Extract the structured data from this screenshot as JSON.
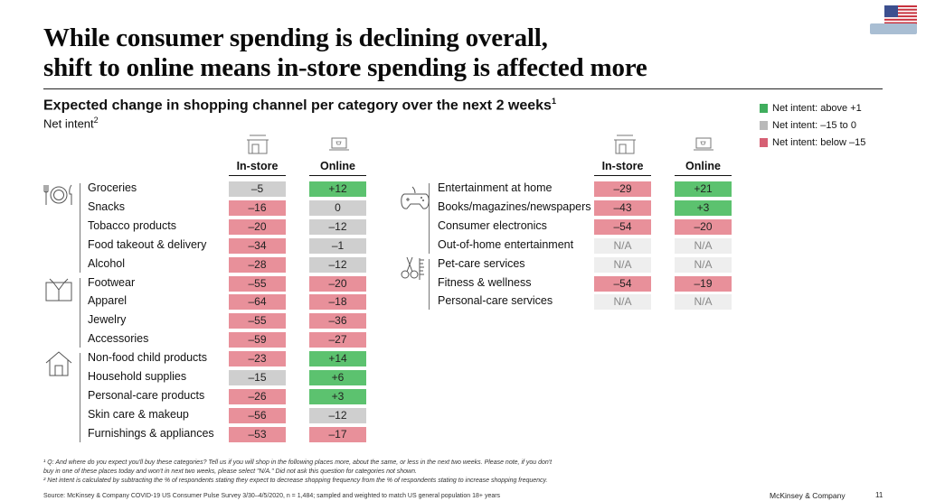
{
  "title": {
    "line1": "While consumer spending is declining overall,",
    "line2": "shift to online means in-store spending is affected more"
  },
  "subtitle": "Expected change in shopping channel per category over the next 2 weeks",
  "subtitle_sup": "1",
  "net_intent_label": "Net intent",
  "net_intent_sup": "2",
  "legend": [
    {
      "label": "Net intent: above +1",
      "color": "#3fad5d"
    },
    {
      "label": "Net intent: –15 to 0",
      "color": "#b9b9b9"
    },
    {
      "label": "Net intent: below –15",
      "color": "#d66074"
    }
  ],
  "colors": {
    "green": "#5cc26f",
    "gray": "#cfcfcf",
    "red": "#e8909a",
    "na": "#eeeeee"
  },
  "column_headers": {
    "instore": "In-store",
    "online": "Online"
  },
  "chart_data": {
    "type": "table",
    "title": "Expected change in shopping channel per category over the next 2 weeks",
    "columns": [
      "In-store",
      "Online"
    ],
    "groups": [
      {
        "icon": "dining-icon",
        "rows": [
          {
            "category": "Groceries",
            "instore": "–5",
            "online": "+12",
            "instore_class": "gray",
            "online_class": "green"
          },
          {
            "category": "Snacks",
            "instore": "–16",
            "online": "0",
            "instore_class": "red",
            "online_class": "gray"
          },
          {
            "category": "Tobacco products",
            "instore": "–20",
            "online": "–12",
            "instore_class": "red",
            "online_class": "gray"
          },
          {
            "category": "Food takeout & delivery",
            "instore": "–34",
            "online": "–1",
            "instore_class": "red",
            "online_class": "gray"
          },
          {
            "category": "Alcohol",
            "instore": "–28",
            "online": "–12",
            "instore_class": "red",
            "online_class": "gray"
          }
        ]
      },
      {
        "icon": "clothing-icon",
        "rows": [
          {
            "category": "Footwear",
            "instore": "–55",
            "online": "–20",
            "instore_class": "red",
            "online_class": "red"
          },
          {
            "category": "Apparel",
            "instore": "–64",
            "online": "–18",
            "instore_class": "red",
            "online_class": "red"
          },
          {
            "category": "Jewelry",
            "instore": "–55",
            "online": "–36",
            "instore_class": "red",
            "online_class": "red"
          },
          {
            "category": "Accessories",
            "instore": "–59",
            "online": "–27",
            "instore_class": "red",
            "online_class": "red"
          }
        ]
      },
      {
        "icon": "house-icon",
        "rows": [
          {
            "category": "Non-food child products",
            "instore": "–23",
            "online": "+14",
            "instore_class": "red",
            "online_class": "green"
          },
          {
            "category": "Household supplies",
            "instore": "–15",
            "online": "+6",
            "instore_class": "gray",
            "online_class": "green"
          },
          {
            "category": "Personal-care products",
            "instore": "–26",
            "online": "+3",
            "instore_class": "red",
            "online_class": "green"
          },
          {
            "category": "Skin care & makeup",
            "instore": "–56",
            "online": "–12",
            "instore_class": "red",
            "online_class": "gray"
          },
          {
            "category": "Furnishings & appliances",
            "instore": "–53",
            "online": "–17",
            "instore_class": "red",
            "online_class": "red"
          }
        ]
      },
      {
        "icon": "gamepad-icon",
        "rows": [
          {
            "category": "Entertainment at home",
            "instore": "–29",
            "online": "+21",
            "instore_class": "red",
            "online_class": "green"
          },
          {
            "category": "Books/magazines/newspapers",
            "instore": "–43",
            "online": "+3",
            "instore_class": "red",
            "online_class": "green"
          },
          {
            "category": "Consumer electronics",
            "instore": "–54",
            "online": "–20",
            "instore_class": "red",
            "online_class": "red"
          },
          {
            "category": "Out-of-home entertainment",
            "instore": "N/A",
            "online": "N/A",
            "instore_class": "na",
            "online_class": "na"
          }
        ]
      },
      {
        "icon": "scissors-icon",
        "rows": [
          {
            "category": "Pet-care services",
            "instore": "N/A",
            "online": "N/A",
            "instore_class": "na",
            "online_class": "na"
          },
          {
            "category": "Fitness & wellness",
            "instore": "–54",
            "online": "–19",
            "instore_class": "red",
            "online_class": "red"
          },
          {
            "category": "Personal-care services",
            "instore": "N/A",
            "online": "N/A",
            "instore_class": "na",
            "online_class": "na"
          }
        ]
      }
    ]
  },
  "footnotes": {
    "note1": "¹ Q: And where do you expect you'll buy these categories? Tell us if you will shop in the following places more, about the same, or less in the next two weeks. Please note, if you don't",
    "note1b": "buy in one of these places today and won't in next two weeks, please select \"N/A.\" Did not ask this question for categories not shown.",
    "note2": "² Net intent is calculated by subtracting the % of respondents stating they expect to decrease shopping frequency from the % of respondents stating to increase shopping frequency."
  },
  "source": "Source: McKinsey & Company COVID-19 US Consumer Pulse Survey 3/30–4/5/2020, n = 1,484; sampled and weighted to match US general population 18+ years",
  "brand": "McKinsey & Company",
  "page_number": "11"
}
